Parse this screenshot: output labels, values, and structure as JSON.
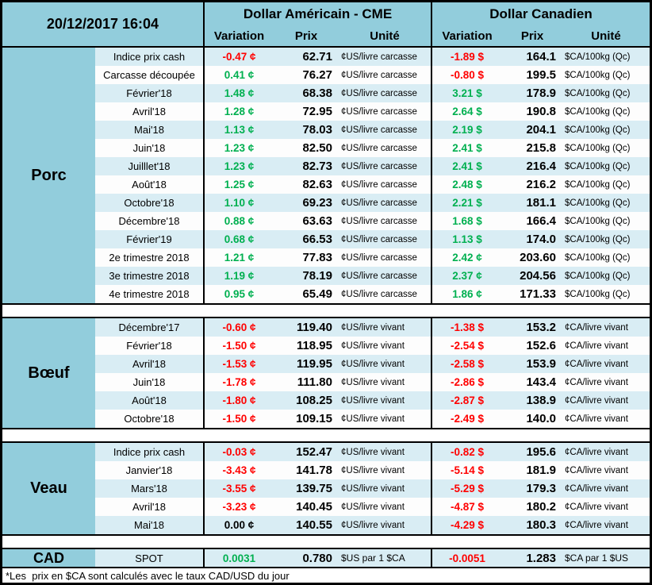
{
  "header": {
    "datetime": "20/12/2017 16:04",
    "usd_group": "Dollar Américain - CME",
    "cad_group": "Dollar Canadien",
    "columns": {
      "variation": "Variation",
      "prix": "Prix",
      "unite": "Unité"
    }
  },
  "sections": [
    {
      "name": "Porc",
      "rows": [
        {
          "label": "Indice prix cash",
          "us": {
            "variation": "-0.47 ¢",
            "color": "red",
            "prix": "62.71",
            "unite": "¢US/livre carcasse"
          },
          "ca": {
            "variation": "-1.89 $",
            "color": "red",
            "prix": "164.1",
            "unite": "$CA/100kg (Qc)"
          }
        },
        {
          "label": "Carcasse découpée",
          "us": {
            "variation": "0.41 ¢",
            "color": "green",
            "prix": "76.27",
            "unite": "¢US/livre carcasse"
          },
          "ca": {
            "variation": "-0.80 $",
            "color": "red",
            "prix": "199.5",
            "unite": "$CA/100kg (Qc)"
          }
        },
        {
          "label": "Février'18",
          "us": {
            "variation": "1.48 ¢",
            "color": "green",
            "prix": "68.38",
            "unite": "¢US/livre carcasse"
          },
          "ca": {
            "variation": "3.21 $",
            "color": "green",
            "prix": "178.9",
            "unite": "$CA/100kg (Qc)"
          }
        },
        {
          "label": "Avril'18",
          "us": {
            "variation": "1.28 ¢",
            "color": "green",
            "prix": "72.95",
            "unite": "¢US/livre carcasse"
          },
          "ca": {
            "variation": "2.64 $",
            "color": "green",
            "prix": "190.8",
            "unite": "$CA/100kg (Qc)"
          }
        },
        {
          "label": "Mai'18",
          "us": {
            "variation": "1.13 ¢",
            "color": "green",
            "prix": "78.03",
            "unite": "¢US/livre carcasse"
          },
          "ca": {
            "variation": "2.19 $",
            "color": "green",
            "prix": "204.1",
            "unite": "$CA/100kg (Qc)"
          }
        },
        {
          "label": "Juin'18",
          "us": {
            "variation": "1.23 ¢",
            "color": "green",
            "prix": "82.50",
            "unite": "¢US/livre carcasse"
          },
          "ca": {
            "variation": "2.41 $",
            "color": "green",
            "prix": "215.8",
            "unite": "$CA/100kg (Qc)"
          }
        },
        {
          "label": "Juilllet'18",
          "us": {
            "variation": "1.23 ¢",
            "color": "green",
            "prix": "82.73",
            "unite": "¢US/livre carcasse"
          },
          "ca": {
            "variation": "2.41 $",
            "color": "green",
            "prix": "216.4",
            "unite": "$CA/100kg (Qc)"
          }
        },
        {
          "label": "Août'18",
          "us": {
            "variation": "1.25 ¢",
            "color": "green",
            "prix": "82.63",
            "unite": "¢US/livre carcasse"
          },
          "ca": {
            "variation": "2.48 $",
            "color": "green",
            "prix": "216.2",
            "unite": "$CA/100kg (Qc)"
          }
        },
        {
          "label": "Octobre'18",
          "us": {
            "variation": "1.10 ¢",
            "color": "green",
            "prix": "69.23",
            "unite": "¢US/livre carcasse"
          },
          "ca": {
            "variation": "2.21 $",
            "color": "green",
            "prix": "181.1",
            "unite": "$CA/100kg (Qc)"
          }
        },
        {
          "label": "Décembre'18",
          "us": {
            "variation": "0.88 ¢",
            "color": "green",
            "prix": "63.63",
            "unite": "¢US/livre carcasse"
          },
          "ca": {
            "variation": "1.68 $",
            "color": "green",
            "prix": "166.4",
            "unite": "$CA/100kg (Qc)"
          }
        },
        {
          "label": "Février'19",
          "us": {
            "variation": "0.68 ¢",
            "color": "green",
            "prix": "66.53",
            "unite": "¢US/livre carcasse"
          },
          "ca": {
            "variation": "1.13 $",
            "color": "green",
            "prix": "174.0",
            "unite": "$CA/100kg (Qc)"
          }
        },
        {
          "label": "2e trimestre 2018",
          "us": {
            "variation": "1.21 ¢",
            "color": "green",
            "prix": "77.83",
            "unite": "¢US/livre carcasse"
          },
          "ca": {
            "variation": "2.42 ¢",
            "color": "green",
            "prix": "203.60",
            "unite": "$CA/100kg (Qc)"
          }
        },
        {
          "label": "3e trimestre 2018",
          "us": {
            "variation": "1.19 ¢",
            "color": "green",
            "prix": "78.19",
            "unite": "¢US/livre carcasse"
          },
          "ca": {
            "variation": "2.37 ¢",
            "color": "green",
            "prix": "204.56",
            "unite": "$CA/100kg (Qc)"
          }
        },
        {
          "label": "4e trimestre 2018",
          "us": {
            "variation": "0.95 ¢",
            "color": "green",
            "prix": "65.49",
            "unite": "¢US/livre carcasse"
          },
          "ca": {
            "variation": "1.86 ¢",
            "color": "green",
            "prix": "171.33",
            "unite": "$CA/100kg (Qc)"
          }
        }
      ]
    },
    {
      "name": "Bœuf",
      "rows": [
        {
          "label": "Décembre'17",
          "us": {
            "variation": "-0.60 ¢",
            "color": "red",
            "prix": "119.40",
            "unite": "¢US/livre vivant"
          },
          "ca": {
            "variation": "-1.38 $",
            "color": "red",
            "prix": "153.2",
            "unite": "¢CA/livre vivant"
          }
        },
        {
          "label": "Février'18",
          "us": {
            "variation": "-1.50 ¢",
            "color": "red",
            "prix": "118.95",
            "unite": "¢US/livre vivant"
          },
          "ca": {
            "variation": "-2.54 $",
            "color": "red",
            "prix": "152.6",
            "unite": "¢CA/livre vivant"
          }
        },
        {
          "label": "Avril'18",
          "us": {
            "variation": "-1.53 ¢",
            "color": "red",
            "prix": "119.95",
            "unite": "¢US/livre vivant"
          },
          "ca": {
            "variation": "-2.58 $",
            "color": "red",
            "prix": "153.9",
            "unite": "¢CA/livre vivant"
          }
        },
        {
          "label": "Juin'18",
          "us": {
            "variation": "-1.78 ¢",
            "color": "red",
            "prix": "111.80",
            "unite": "¢US/livre vivant"
          },
          "ca": {
            "variation": "-2.86 $",
            "color": "red",
            "prix": "143.4",
            "unite": "¢CA/livre vivant"
          }
        },
        {
          "label": "Août'18",
          "us": {
            "variation": "-1.80 ¢",
            "color": "red",
            "prix": "108.25",
            "unite": "¢US/livre vivant"
          },
          "ca": {
            "variation": "-2.87 $",
            "color": "red",
            "prix": "138.9",
            "unite": "¢CA/livre vivant"
          }
        },
        {
          "label": "Octobre'18",
          "us": {
            "variation": "-1.50 ¢",
            "color": "red",
            "prix": "109.15",
            "unite": "¢US/livre vivant"
          },
          "ca": {
            "variation": "-2.49 $",
            "color": "red",
            "prix": "140.0",
            "unite": "¢CA/livre vivant"
          }
        }
      ]
    },
    {
      "name": "Veau",
      "rows": [
        {
          "label": "Indice prix cash",
          "us": {
            "variation": "-0.03 ¢",
            "color": "red",
            "prix": "152.47",
            "unite": "¢US/livre vivant"
          },
          "ca": {
            "variation": "-0.82 $",
            "color": "red",
            "prix": "195.6",
            "unite": "¢CA/livre vivant"
          }
        },
        {
          "label": "Janvier'18",
          "us": {
            "variation": "-3.43 ¢",
            "color": "red",
            "prix": "141.78",
            "unite": "¢US/livre vivant"
          },
          "ca": {
            "variation": "-5.14 $",
            "color": "red",
            "prix": "181.9",
            "unite": "¢CA/livre vivant"
          }
        },
        {
          "label": "Mars'18",
          "us": {
            "variation": "-3.55 ¢",
            "color": "red",
            "prix": "139.75",
            "unite": "¢US/livre vivant"
          },
          "ca": {
            "variation": "-5.29 $",
            "color": "red",
            "prix": "179.3",
            "unite": "¢CA/livre vivant"
          }
        },
        {
          "label": "Avril'18",
          "us": {
            "variation": "-3.23 ¢",
            "color": "red",
            "prix": "140.45",
            "unite": "¢US/livre vivant"
          },
          "ca": {
            "variation": "-4.87 $",
            "color": "red",
            "prix": "180.2",
            "unite": "¢CA/livre vivant"
          }
        },
        {
          "label": "Mai'18",
          "us": {
            "variation": "0.00 ¢",
            "color": "black",
            "prix": "140.55",
            "unite": "¢US/livre vivant"
          },
          "ca": {
            "variation": "-4.29 $",
            "color": "red",
            "prix": "180.3",
            "unite": "¢CA/livre vivant"
          }
        }
      ]
    }
  ],
  "cad": {
    "label": "CAD",
    "row_label": "SPOT",
    "us": {
      "variation": "0.0031",
      "color": "green",
      "prix": "0.780",
      "unite": "$US par 1 $CA"
    },
    "ca": {
      "variation": "-0.0051",
      "color": "red",
      "prix": "1.283",
      "unite": "$CA par 1 $US"
    }
  },
  "footnote": "*Les  prix en $CA sont calculés avec le taux CAD/USD du jour",
  "colors": {
    "header_bg": "#92CDDC",
    "row_alt_bg": "#D9EDF4",
    "row_bg": "#FDFDFD",
    "positive": "#00B050",
    "negative": "#FF0000",
    "neutral": "#000000",
    "border": "#000000"
  }
}
